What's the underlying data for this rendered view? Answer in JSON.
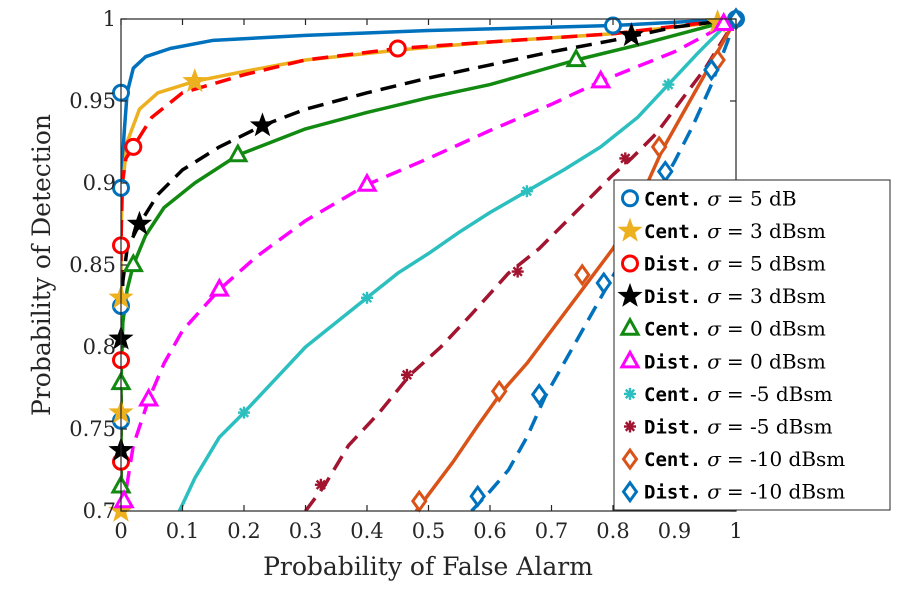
{
  "chart_data": {
    "type": "line",
    "xlabel": "Probability of False Alarm",
    "ylabel": "Probability of Detection",
    "xlim": [
      0,
      1
    ],
    "ylim": [
      0.7,
      1
    ],
    "xticks": [
      "0",
      "0.1",
      "0.2",
      "0.3",
      "0.4",
      "0.5",
      "0.6",
      "0.7",
      "0.8",
      "0.9",
      "1"
    ],
    "yticks": [
      "0.7",
      "0.75",
      "0.8",
      "0.85",
      "0.9",
      "0.95",
      "1"
    ],
    "grid": false,
    "legend_position": "lower-right",
    "series": [
      {
        "name": "Cent. σ = 5 dB",
        "legend_prefix": "Cent.",
        "legend_suffix": "= 5 dB",
        "color": "#0072BD",
        "dash": "solid",
        "marker": "circle",
        "x": [
          0,
          0,
          0,
          0,
          0,
          0,
          0.005,
          0.01,
          0.02,
          0.04,
          0.08,
          0.15,
          0.3,
          0.5,
          0.8,
          1
        ],
        "y": [
          0.7,
          0.755,
          0.79,
          0.825,
          0.86,
          0.897,
          0.93,
          0.955,
          0.97,
          0.977,
          0.982,
          0.987,
          0.99,
          0.993,
          0.996,
          1
        ],
        "markers_x": [
          0,
          0,
          0,
          0,
          0.8,
          1
        ],
        "markers_y": [
          0.755,
          0.825,
          0.897,
          0.955,
          0.996,
          1
        ]
      },
      {
        "name": "Cent. σ = 3 dBsm",
        "legend_prefix": "Cent.",
        "legend_suffix": "= 3 dBsm",
        "color": "#EDB120",
        "dash": "solid",
        "marker": "star",
        "x": [
          0,
          0,
          0,
          0,
          0.003,
          0.01,
          0.03,
          0.06,
          0.12,
          0.2,
          0.3,
          0.45,
          0.6,
          0.8,
          0.97,
          1
        ],
        "y": [
          0.7,
          0.76,
          0.83,
          0.87,
          0.9,
          0.925,
          0.945,
          0.955,
          0.962,
          0.968,
          0.975,
          0.981,
          0.986,
          0.991,
          0.998,
          1
        ],
        "markers_x": [
          0,
          0,
          0,
          0.12,
          0.97
        ],
        "markers_y": [
          0.7,
          0.76,
          0.83,
          0.962,
          0.998
        ]
      },
      {
        "name": "Dist. σ = 5 dBsm",
        "legend_prefix": "Dist.",
        "legend_suffix": "= 5 dBsm",
        "color": "#FF0000",
        "dash": "dashed",
        "marker": "circle",
        "x": [
          0,
          0,
          0,
          0,
          0.002,
          0.008,
          0.02,
          0.05,
          0.1,
          0.2,
          0.3,
          0.45,
          0.6,
          0.8,
          1
        ],
        "y": [
          0.7,
          0.73,
          0.79,
          0.862,
          0.9,
          0.915,
          0.922,
          0.94,
          0.955,
          0.966,
          0.975,
          0.982,
          0.986,
          0.991,
          1
        ],
        "markers_x": [
          0,
          0,
          0,
          0.02,
          0.45
        ],
        "markers_y": [
          0.73,
          0.792,
          0.862,
          0.922,
          0.982
        ]
      },
      {
        "name": "Dist. σ = 3 dBsm",
        "legend_prefix": "Dist.",
        "legend_suffix": "= 3 dBsm",
        "color": "#000000",
        "dash": "dashed",
        "marker": "star",
        "x": [
          0,
          0,
          0,
          0.003,
          0.01,
          0.03,
          0.06,
          0.1,
          0.16,
          0.23,
          0.3,
          0.4,
          0.5,
          0.6,
          0.7,
          0.8,
          0.9,
          1
        ],
        "y": [
          0.7,
          0.737,
          0.805,
          0.84,
          0.86,
          0.875,
          0.893,
          0.908,
          0.922,
          0.935,
          0.945,
          0.955,
          0.964,
          0.972,
          0.98,
          0.987,
          0.995,
          1
        ],
        "markers_x": [
          0,
          0,
          0.03,
          0.23,
          0.83
        ],
        "markers_y": [
          0.737,
          0.805,
          0.875,
          0.935,
          0.99
        ]
      },
      {
        "name": "Cent. σ = 0 dBsm",
        "legend_prefix": "Cent.",
        "legend_suffix": "= 0 dBsm",
        "color": "#128A12",
        "dash": "solid",
        "marker": "triangle",
        "x": [
          0,
          0,
          0,
          0.003,
          0.01,
          0.02,
          0.04,
          0.07,
          0.12,
          0.19,
          0.3,
          0.4,
          0.5,
          0.6,
          0.74,
          0.85,
          0.95,
          1
        ],
        "y": [
          0.7,
          0.715,
          0.778,
          0.815,
          0.835,
          0.85,
          0.868,
          0.885,
          0.9,
          0.917,
          0.933,
          0.943,
          0.952,
          0.96,
          0.975,
          0.985,
          0.995,
          1
        ],
        "markers_x": [
          0,
          0,
          0.02,
          0.19,
          0.74
        ],
        "markers_y": [
          0.715,
          0.778,
          0.85,
          0.917,
          0.975
        ]
      },
      {
        "name": "Dist. σ = 0 dBsm",
        "legend_prefix": "Dist.",
        "legend_suffix": "= 0 dBsm",
        "color": "#FF00FF",
        "dash": "dashed",
        "marker": "triangle",
        "x": [
          0.0,
          0.005,
          0.02,
          0.045,
          0.07,
          0.1,
          0.16,
          0.22,
          0.3,
          0.4,
          0.5,
          0.6,
          0.7,
          0.78,
          0.9,
          1
        ],
        "y": [
          0.7,
          0.705,
          0.74,
          0.768,
          0.79,
          0.81,
          0.835,
          0.855,
          0.877,
          0.899,
          0.915,
          0.932,
          0.948,
          0.962,
          0.98,
          1
        ],
        "markers_x": [
          0.005,
          0.045,
          0.16,
          0.4,
          0.78,
          0.98
        ],
        "markers_y": [
          0.706,
          0.768,
          0.835,
          0.899,
          0.962,
          0.997
        ]
      },
      {
        "name": "Cent. σ = -5 dBsm",
        "legend_prefix": "Cent.",
        "legend_suffix": "= -5 dBsm",
        "color": "#2CBFBF",
        "dash": "solid",
        "marker": "asterisk",
        "x": [
          0.095,
          0.12,
          0.16,
          0.2,
          0.25,
          0.3,
          0.35,
          0.4,
          0.45,
          0.5,
          0.55,
          0.6,
          0.66,
          0.72,
          0.78,
          0.84,
          0.89,
          0.94,
          0.98,
          1
        ],
        "y": [
          0.7,
          0.72,
          0.745,
          0.76,
          0.78,
          0.8,
          0.815,
          0.83,
          0.845,
          0.857,
          0.87,
          0.882,
          0.895,
          0.908,
          0.922,
          0.94,
          0.96,
          0.98,
          0.995,
          1
        ],
        "markers_x": [
          0.2,
          0.4,
          0.66,
          0.89
        ],
        "markers_y": [
          0.76,
          0.83,
          0.895,
          0.96
        ]
      },
      {
        "name": "Dist. σ = -5 dBsm",
        "legend_prefix": "Dist.",
        "legend_suffix": "= -5 dBsm",
        "color": "#A2142F",
        "dash": "dashed",
        "marker": "asterisk",
        "x": [
          0.3,
          0.33,
          0.37,
          0.42,
          0.47,
          0.52,
          0.57,
          0.63,
          0.68,
          0.72,
          0.76,
          0.8,
          0.83,
          0.87,
          0.91,
          0.95,
          0.98,
          1
        ],
        "y": [
          0.7,
          0.715,
          0.74,
          0.76,
          0.783,
          0.8,
          0.82,
          0.845,
          0.86,
          0.875,
          0.89,
          0.905,
          0.915,
          0.93,
          0.95,
          0.97,
          0.988,
          1
        ],
        "markers_x": [
          0.325,
          0.465,
          0.645,
          0.82
        ],
        "markers_y": [
          0.716,
          0.783,
          0.846,
          0.915
        ]
      },
      {
        "name": "Cent. σ = -10 dBsm",
        "legend_prefix": "Cent.",
        "legend_suffix": "= -10 dBsm",
        "color": "#D95319",
        "dash": "solid",
        "marker": "diamond",
        "x": [
          0.48,
          0.5,
          0.54,
          0.58,
          0.62,
          0.66,
          0.7,
          0.74,
          0.77,
          0.8,
          0.83,
          0.85,
          0.88,
          0.91,
          0.94,
          0.97,
          1
        ],
        "y": [
          0.7,
          0.71,
          0.73,
          0.752,
          0.773,
          0.79,
          0.81,
          0.83,
          0.845,
          0.86,
          0.88,
          0.895,
          0.92,
          0.94,
          0.96,
          0.98,
          1
        ],
        "markers_x": [
          0.485,
          0.615,
          0.75,
          0.875,
          0.97,
          1
        ],
        "markers_y": [
          0.706,
          0.773,
          0.844,
          0.922,
          0.975,
          1
        ]
      },
      {
        "name": "Dist. σ = -10 dBsm",
        "legend_prefix": "Dist.",
        "legend_suffix": "= -10 dBsm",
        "color": "#0072BD",
        "dash": "dashed",
        "marker": "diamond",
        "x": [
          0.57,
          0.6,
          0.63,
          0.66,
          0.69,
          0.72,
          0.75,
          0.78,
          0.81,
          0.84,
          0.87,
          0.9,
          0.93,
          0.96,
          0.98,
          1
        ],
        "y": [
          0.7,
          0.712,
          0.725,
          0.745,
          0.77,
          0.79,
          0.81,
          0.83,
          0.85,
          0.87,
          0.893,
          0.913,
          0.935,
          0.96,
          0.98,
          1
        ],
        "markers_x": [
          0.58,
          0.68,
          0.785,
          0.885,
          0.96,
          1
        ],
        "markers_y": [
          0.709,
          0.771,
          0.839,
          0.907,
          0.969,
          1
        ]
      }
    ]
  }
}
